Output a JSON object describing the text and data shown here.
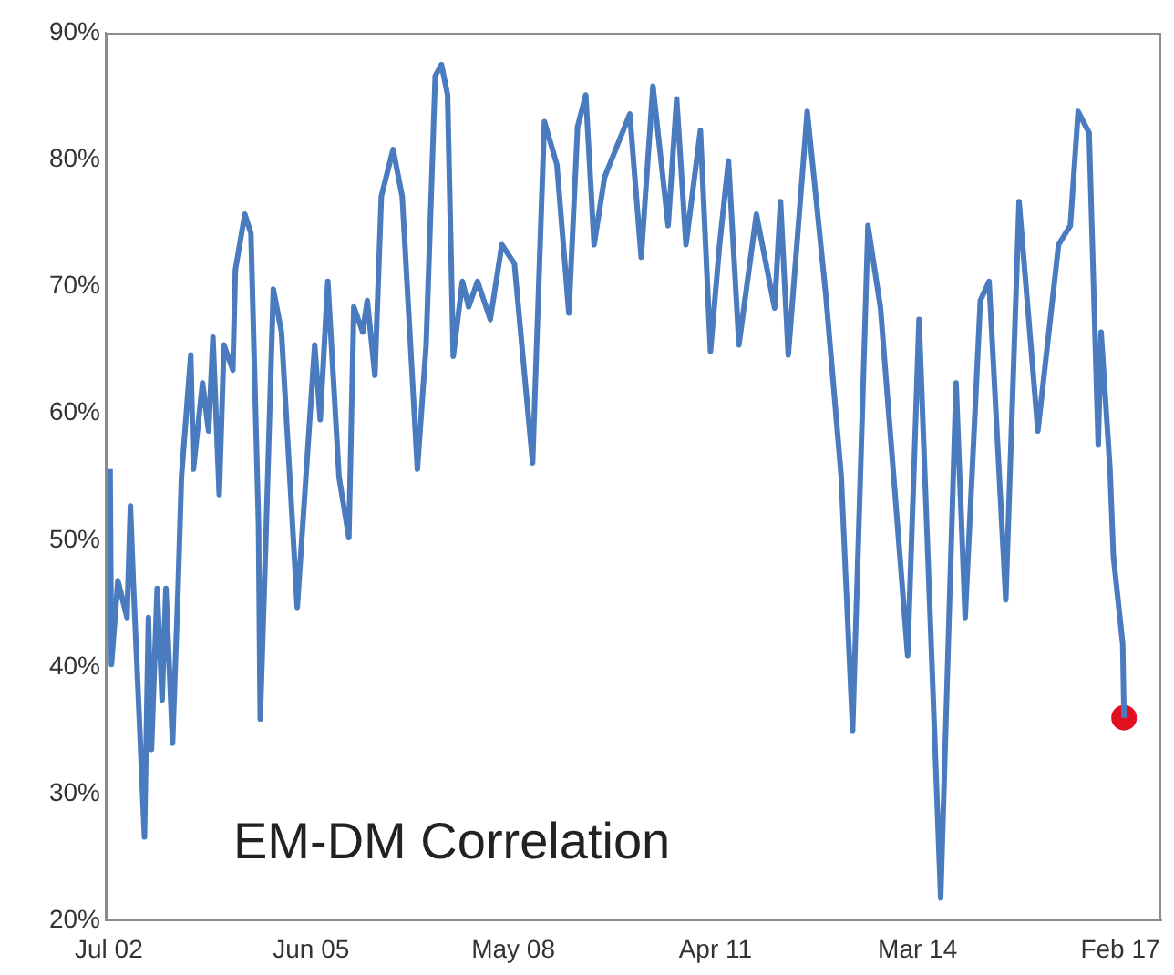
{
  "chart_data": {
    "type": "line",
    "annotations": [
      "EM-DM Correlation"
    ],
    "xlim": [
      "2002-06-15",
      "2017-09-05"
    ],
    "xticks": [
      {
        "value": "2002-07",
        "label": "Jul 02"
      },
      {
        "value": "2005-06",
        "label": "Jun 05"
      },
      {
        "value": "2008-05",
        "label": "May 08"
      },
      {
        "value": "2011-04",
        "label": "Apr 11"
      },
      {
        "value": "2014-03",
        "label": "Mar 14"
      },
      {
        "value": "2017-02",
        "label": "Feb 17"
      }
    ],
    "ylim": [
      20,
      90
    ],
    "yticks": [
      {
        "value": 20,
        "label": "20%"
      },
      {
        "value": 30,
        "label": "30%"
      },
      {
        "value": 40,
        "label": "40%"
      },
      {
        "value": 50,
        "label": "50%"
      },
      {
        "value": 60,
        "label": "60%"
      },
      {
        "value": 70,
        "label": "70%"
      },
      {
        "value": 80,
        "label": "80%"
      },
      {
        "value": 90,
        "label": "90%"
      }
    ],
    "grid": false,
    "legend": false,
    "series": [
      {
        "color": "#4a7bbf",
        "marker": "none",
        "line_style": "solid",
        "x": [
          "2002-07-08",
          "2002-07-15",
          "2002-08-18",
          "2002-10-05",
          "2002-10-23",
          "2002-11-07",
          "2003-01-05",
          "2003-01-26",
          "2003-02-11",
          "2003-03-13",
          "2003-04-08",
          "2003-04-28",
          "2003-06-02",
          "2003-07-01",
          "2003-07-19",
          "2003-09-06",
          "2003-09-20",
          "2003-11-07",
          "2003-12-09",
          "2004-01-01",
          "2004-02-03",
          "2004-02-28",
          "2004-04-15",
          "2004-04-28",
          "2004-06-17",
          "2004-07-19",
          "2004-08-28",
          "2004-09-06",
          "2004-10-08",
          "2004-11-14",
          "2004-12-27",
          "2005-03-20",
          "2005-06-20",
          "2005-07-19",
          "2005-08-28",
          "2005-10-26",
          "2005-12-17",
          "2006-01-12",
          "2006-02-28",
          "2006-03-24",
          "2006-05-03",
          "2006-06-06",
          "2006-08-07",
          "2006-09-24",
          "2006-12-13",
          "2007-01-28",
          "2007-03-17",
          "2007-04-19",
          "2007-05-21",
          "2007-06-20",
          "2007-08-07",
          "2007-09-09",
          "2007-10-26",
          "2008-01-01",
          "2008-03-02",
          "2008-05-07",
          "2008-08-11",
          "2008-10-12",
          "2008-12-17",
          "2009-02-18",
          "2009-04-05",
          "2009-05-18",
          "2009-07-01",
          "2009-08-25",
          "2010-01-05",
          "2010-03-06",
          "2010-05-07",
          "2010-07-26",
          "2010-09-09",
          "2010-10-28",
          "2011-01-12",
          "2011-03-06",
          "2011-04-23",
          "2011-06-09",
          "2011-08-03",
          "2011-11-03",
          "2012-02-07",
          "2012-03-09",
          "2012-04-19",
          "2012-07-28",
          "2012-11-03",
          "2013-01-23",
          "2013-03-24",
          "2013-06-13",
          "2013-08-18",
          "2014-01-08",
          "2014-03-09",
          "2014-07-01",
          "2014-09-20",
          "2014-11-07",
          "2015-01-26",
          "2015-03-13",
          "2015-06-09",
          "2015-08-18",
          "2015-11-25",
          "2016-03-13",
          "2016-05-14",
          "2016-06-24",
          "2016-08-21",
          "2016-10-08",
          "2016-10-23",
          "2016-12-09",
          "2016-12-27",
          "2017-02-14",
          "2017-02-21"
        ],
        "values": [
          55.6,
          40.2,
          46.8,
          43.9,
          52.7,
          46.8,
          26.6,
          43.9,
          33.5,
          46.2,
          37.4,
          46.2,
          34,
          46.2,
          55,
          64.6,
          55.6,
          62.4,
          58.6,
          66,
          53.6,
          65.4,
          63.4,
          71.3,
          75.7,
          74.2,
          51.2,
          35.9,
          51.2,
          69.8,
          66.4,
          44.7,
          65.4,
          59.5,
          70.4,
          55,
          50.2,
          68.4,
          66.4,
          68.9,
          63,
          77.1,
          80.8,
          77.1,
          55.6,
          65.4,
          86.6,
          87.5,
          85.1,
          64.5,
          70.4,
          68.4,
          70.4,
          67.4,
          73.3,
          71.8,
          56.1,
          83,
          79.6,
          67.9,
          82.6,
          85.1,
          73.3,
          78.6,
          83.6,
          72.3,
          85.8,
          74.8,
          84.8,
          73.3,
          82.3,
          64.9,
          73.3,
          79.9,
          65.4,
          75.7,
          68.3,
          76.7,
          64.6,
          83.8,
          69.3,
          55,
          35,
          74.8,
          68.3,
          40.9,
          67.4,
          21.8,
          62.4,
          43.9,
          68.9,
          70.4,
          45.3,
          76.7,
          58.6,
          73.3,
          74.8,
          83.8,
          82.1,
          57.5,
          66.4,
          55.6,
          48.7,
          41.8,
          36
        ]
      },
      {
        "type": "scatter",
        "color": "#e0101f",
        "marker": "circle",
        "x": [
          "2017-02-21"
        ],
        "values": [
          36
        ]
      }
    ]
  }
}
